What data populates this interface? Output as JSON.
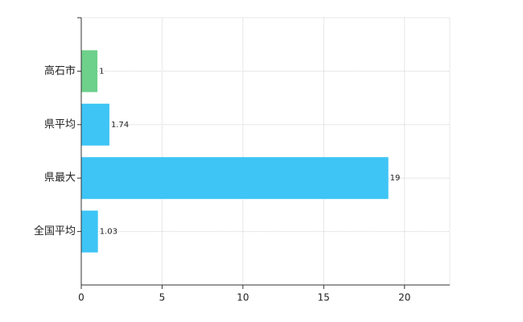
{
  "chart_data": {
    "type": "hbar",
    "categories": [
      "高石市",
      "県平均",
      "県最大",
      "全国平均"
    ],
    "values": [
      1,
      1.74,
      19,
      1.03
    ],
    "colors": [
      "#6dd08b",
      "#3ec5f5",
      "#3ec5f5",
      "#3ec5f5"
    ],
    "xlim": [
      0,
      22.8
    ],
    "xticks": [
      0,
      5,
      10,
      15,
      20
    ],
    "grid": true
  }
}
